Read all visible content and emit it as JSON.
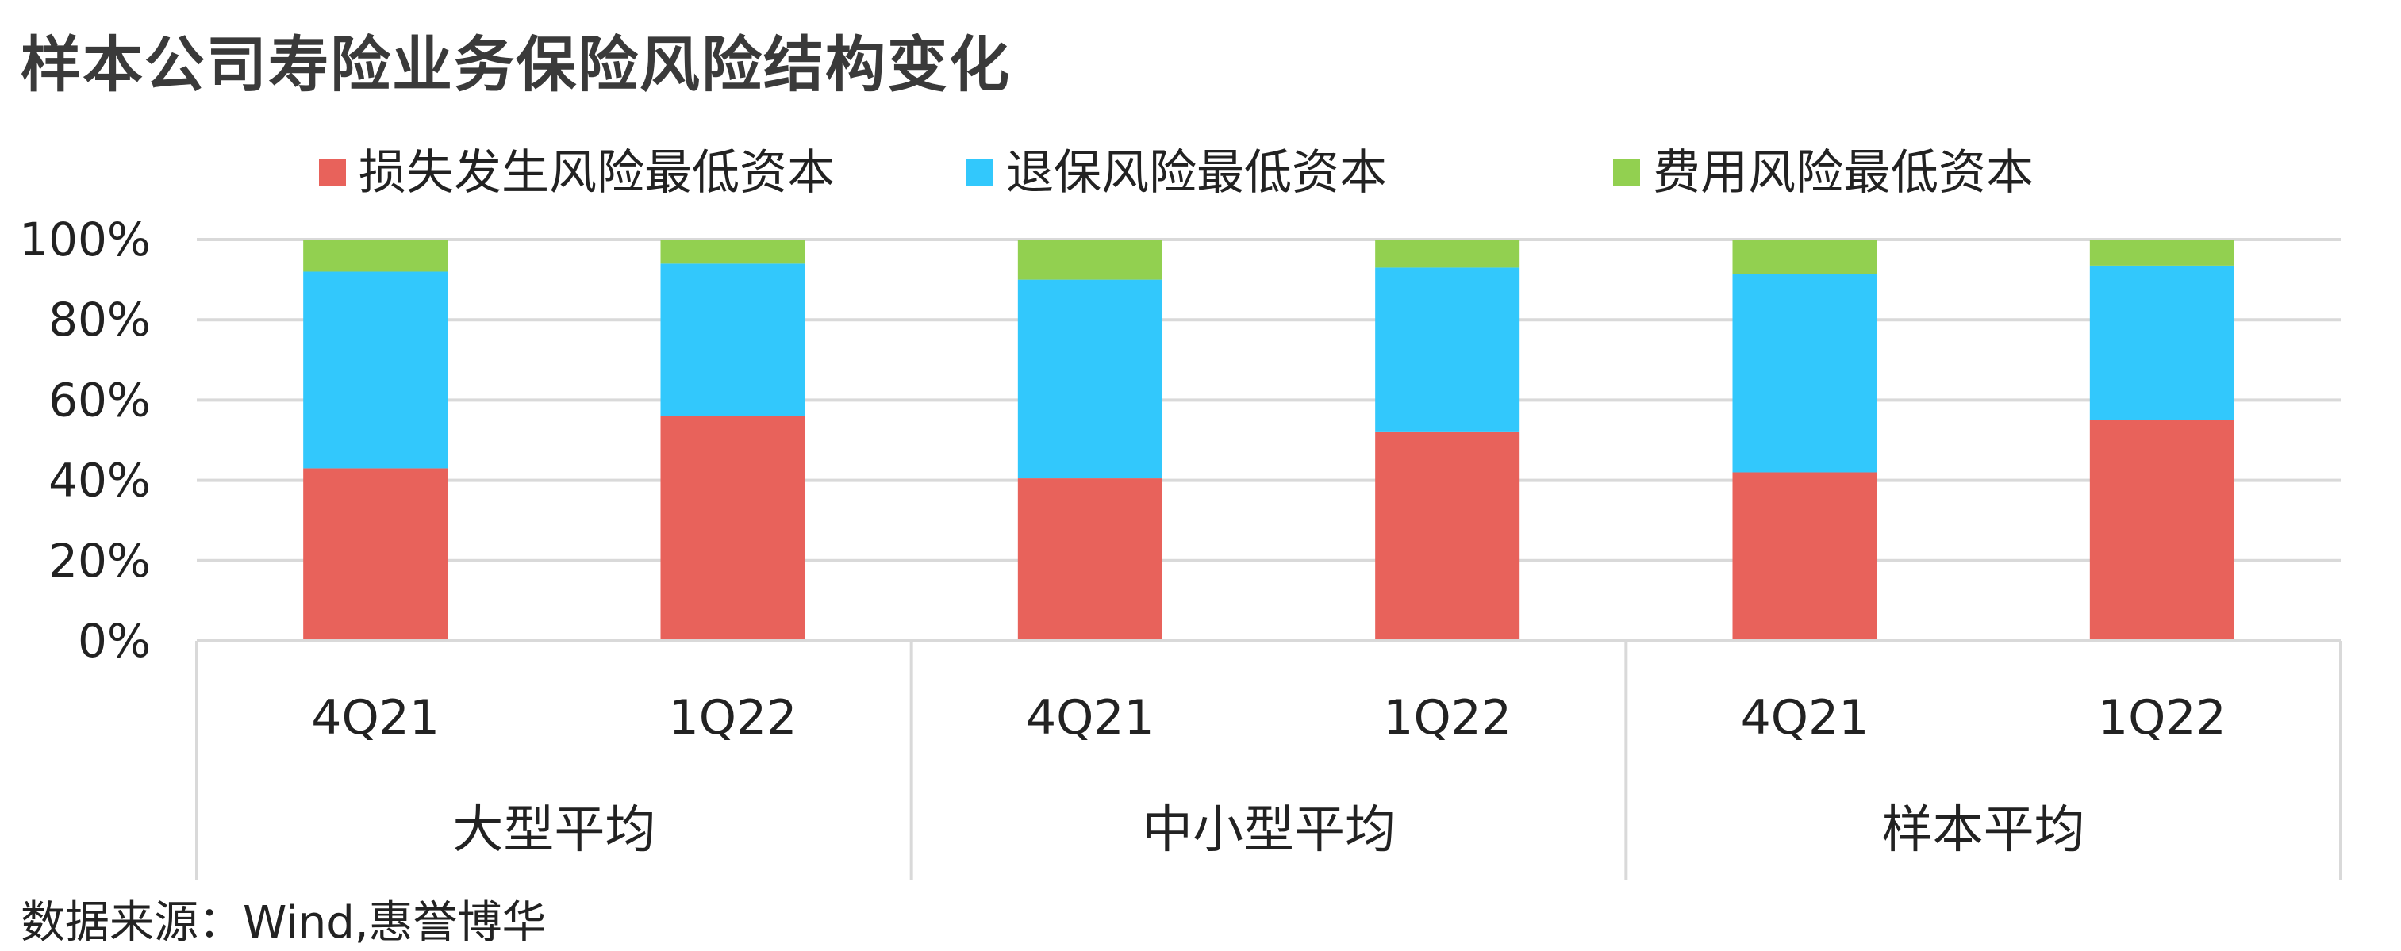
{
  "title": "样本公司寿险业务保险风险结构变化",
  "source": "数据来源：Wind,惠誉博华",
  "chart_data": {
    "type": "bar",
    "stacked": true,
    "categories": [
      "4Q21",
      "1Q22",
      "4Q21",
      "1Q22",
      "4Q21",
      "1Q22"
    ],
    "groups": [
      {
        "label": "大型平均",
        "categories": [
          "4Q21",
          "1Q22"
        ]
      },
      {
        "label": "中小型平均",
        "categories": [
          "4Q21",
          "1Q22"
        ]
      },
      {
        "label": "样本平均",
        "categories": [
          "4Q21",
          "1Q22"
        ]
      }
    ],
    "series": [
      {
        "name": "损失发生风险最低资本",
        "color": "#E8625B",
        "values": [
          43,
          56,
          40.5,
          52,
          42,
          55
        ]
      },
      {
        "name": "退保风险最低资本",
        "color": "#32C8FC",
        "values": [
          49,
          38,
          49.5,
          41,
          49.5,
          38.5
        ]
      },
      {
        "name": "费用风险最低资本",
        "color": "#92D050",
        "values": [
          8,
          6,
          10,
          7,
          8.5,
          6.5
        ]
      }
    ],
    "yticks": [
      "0%",
      "20%",
      "40%",
      "60%",
      "80%",
      "100%"
    ],
    "ylim": [
      0,
      100
    ],
    "grid": true,
    "legend": "top"
  }
}
